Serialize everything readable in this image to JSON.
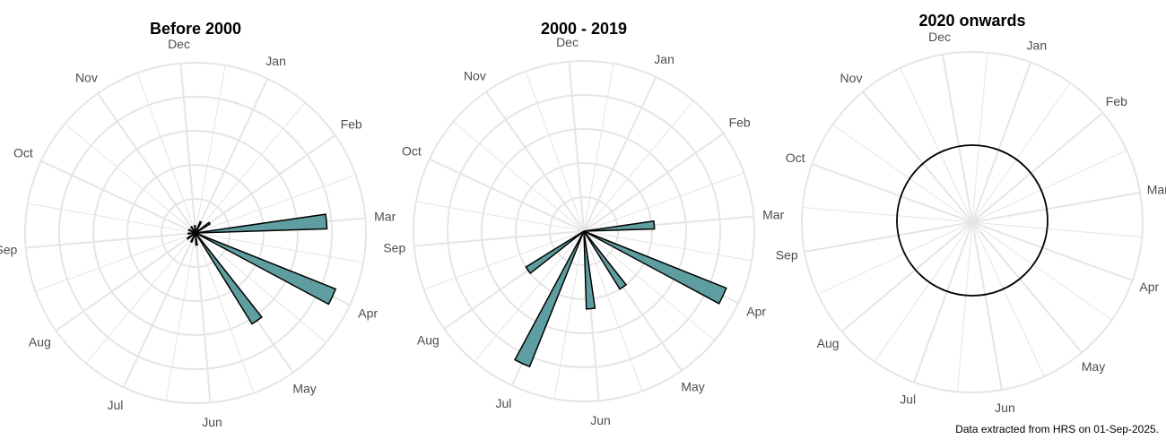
{
  "caption": "Data extracted from HRS on 01-Sep-2025.",
  "colors": {
    "bar_fill": "#5f9ea0",
    "bar_stroke": "#000000",
    "grid": "#e5e5e5",
    "label": "#4d4d4d"
  },
  "chart_data": [
    {
      "type": "rose",
      "title": "Before 2000",
      "months": [
        "Jan",
        "Feb",
        "Mar",
        "Apr",
        "May",
        "Jun",
        "Jul",
        "Aug",
        "Sep",
        "Oct",
        "Nov",
        "Dec"
      ],
      "values": [
        0.5,
        0.7,
        5.4,
        6.2,
        4.4,
        0.5,
        0.4,
        0.4,
        0.3,
        0.3,
        0.3,
        0.3
      ],
      "max_value": 7,
      "grid": true
    },
    {
      "type": "rose",
      "title": "2000 - 2019",
      "months": [
        "Jan",
        "Feb",
        "Mar",
        "Apr",
        "May",
        "Jun",
        "Jul",
        "Aug",
        "Sep",
        "Oct",
        "Nov",
        "Dec"
      ],
      "values": [
        0,
        0,
        2.9,
        6.3,
        2.8,
        3.2,
        6.0,
        2.8,
        0,
        0,
        0,
        0
      ],
      "max_value": 7,
      "grid": true
    },
    {
      "type": "rose",
      "title": "2020 onwards",
      "months": [
        "Jan",
        "Feb",
        "Mar",
        "Apr",
        "May",
        "Jun",
        "Jul",
        "Aug",
        "Sep",
        "Oct",
        "Nov",
        "Dec"
      ],
      "values": [
        1,
        1,
        1,
        1,
        1,
        1,
        1,
        1,
        1,
        1,
        1,
        1
      ],
      "max_value": 1,
      "grid": false
    }
  ]
}
